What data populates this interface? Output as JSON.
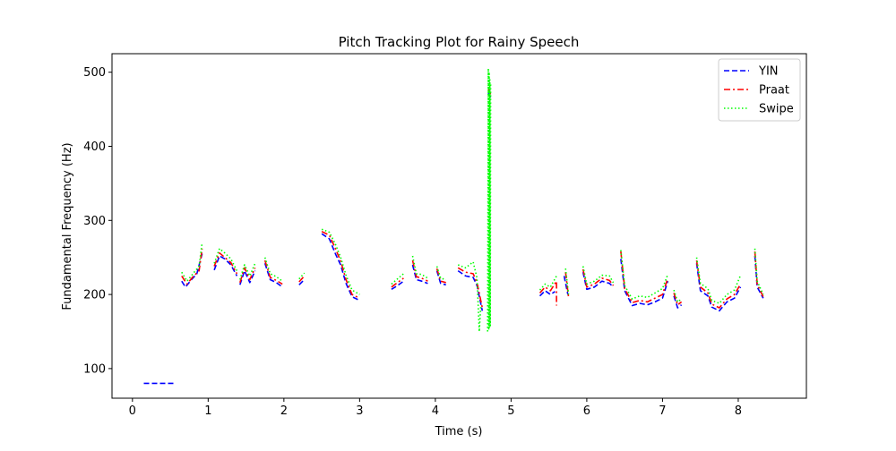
{
  "chart_data": {
    "type": "line",
    "title": "Pitch Tracking Plot for Rainy Speech",
    "xlabel": "Time (s)",
    "ylabel": "Fundamental Frequency (Hz)",
    "xlim": [
      -0.27,
      8.9
    ],
    "ylim": [
      60,
      525
    ],
    "xticks": [
      0,
      1,
      2,
      3,
      4,
      5,
      6,
      7,
      8
    ],
    "yticks": [
      100,
      200,
      300,
      400,
      500
    ],
    "grid": false,
    "legend_position": "top-right",
    "series": [
      {
        "name": "YIN",
        "color": "#0000ff",
        "dash": "dashed",
        "segments": [
          [
            [
              0.15,
              80
            ],
            [
              0.55,
              80
            ]
          ],
          [
            [
              0.65,
              218
            ],
            [
              0.7,
              210
            ],
            [
              0.78,
              220
            ],
            [
              0.85,
              228
            ],
            [
              0.92,
              255
            ]
          ],
          [
            [
              1.08,
              233
            ],
            [
              1.15,
              252
            ],
            [
              1.22,
              248
            ],
            [
              1.3,
              240
            ],
            [
              1.38,
              225
            ]
          ],
          [
            [
              1.42,
              213
            ],
            [
              1.48,
              232
            ],
            [
              1.55,
              216
            ],
            [
              1.62,
              232
            ]
          ],
          [
            [
              1.75,
              242
            ],
            [
              1.82,
              220
            ],
            [
              1.9,
              216
            ],
            [
              1.98,
              210
            ]
          ],
          [
            [
              2.2,
              213
            ],
            [
              2.27,
              220
            ]
          ],
          [
            [
              2.5,
              282
            ],
            [
              2.6,
              275
            ],
            [
              2.68,
              255
            ],
            [
              2.75,
              240
            ],
            [
              2.82,
              215
            ],
            [
              2.9,
              197
            ],
            [
              3.0,
              192
            ]
          ],
          [
            [
              3.42,
              207
            ],
            [
              3.5,
              212
            ],
            [
              3.58,
              218
            ]
          ],
          [
            [
              3.7,
              240
            ],
            [
              3.75,
              220
            ],
            [
              3.82,
              218
            ],
            [
              3.9,
              215
            ]
          ],
          [
            [
              4.02,
              232
            ],
            [
              4.07,
              215
            ],
            [
              4.14,
              213
            ]
          ],
          [
            [
              4.3,
              232
            ],
            [
              4.4,
              225
            ],
            [
              4.5,
              223
            ],
            [
              4.55,
              212
            ],
            [
              4.62,
              178
            ]
          ],
          [
            [
              4.7,
              472
            ],
            [
              4.73,
              466
            ]
          ],
          [
            [
              5.38,
              198
            ],
            [
              5.45,
              205
            ],
            [
              5.52,
              200
            ],
            [
              5.58,
              204
            ]
          ],
          [
            [
              5.7,
              225
            ],
            [
              5.75,
              200
            ]
          ],
          [
            [
              5.95,
              230
            ],
            [
              6.0,
              207
            ],
            [
              6.1,
              210
            ],
            [
              6.2,
              218
            ],
            [
              6.3,
              215
            ],
            [
              6.35,
              210
            ]
          ],
          [
            [
              6.45,
              248
            ],
            [
              6.5,
              205
            ],
            [
              6.6,
              185
            ],
            [
              6.7,
              188
            ],
            [
              6.8,
              186
            ],
            [
              6.9,
              190
            ],
            [
              7.0,
              195
            ],
            [
              7.07,
              218
            ]
          ],
          [
            [
              7.15,
              198
            ],
            [
              7.2,
              182
            ],
            [
              7.25,
              186
            ]
          ],
          [
            [
              7.45,
              242
            ],
            [
              7.5,
              205
            ],
            [
              7.6,
              198
            ],
            [
              7.65,
              183
            ],
            [
              7.75,
              178
            ],
            [
              7.85,
              190
            ],
            [
              7.95,
              195
            ],
            [
              8.03,
              210
            ]
          ],
          [
            [
              8.22,
              252
            ],
            [
              8.25,
              210
            ],
            [
              8.33,
              195
            ]
          ]
        ]
      },
      {
        "name": "Praat",
        "color": "#ff0000",
        "dash": "dashdot",
        "segments": [
          [
            [
              0.65,
              225
            ],
            [
              0.72,
              214
            ],
            [
              0.8,
              224
            ],
            [
              0.88,
              232
            ],
            [
              0.92,
              262
            ]
          ],
          [
            [
              1.08,
              238
            ],
            [
              1.15,
              256
            ],
            [
              1.22,
              250
            ],
            [
              1.3,
              243
            ],
            [
              1.38,
              228
            ]
          ],
          [
            [
              1.42,
              216
            ],
            [
              1.48,
              236
            ],
            [
              1.55,
              220
            ],
            [
              1.62,
              236
            ]
          ],
          [
            [
              1.75,
              246
            ],
            [
              1.82,
              223
            ],
            [
              1.9,
              219
            ],
            [
              1.98,
              214
            ]
          ],
          [
            [
              2.2,
              217
            ],
            [
              2.27,
              225
            ]
          ],
          [
            [
              2.5,
              285
            ],
            [
              2.6,
              280
            ],
            [
              2.68,
              262
            ],
            [
              2.75,
              245
            ],
            [
              2.82,
              220
            ],
            [
              2.9,
              200
            ],
            [
              3.0,
              195
            ]
          ],
          [
            [
              3.42,
              210
            ],
            [
              3.5,
              216
            ],
            [
              3.58,
              222
            ]
          ],
          [
            [
              3.7,
              246
            ],
            [
              3.75,
              224
            ],
            [
              3.82,
              222
            ],
            [
              3.9,
              218
            ]
          ],
          [
            [
              4.02,
              235
            ],
            [
              4.07,
              218
            ],
            [
              4.14,
              216
            ]
          ],
          [
            [
              4.3,
              236
            ],
            [
              4.4,
              230
            ],
            [
              4.5,
              228
            ],
            [
              4.55,
              216
            ],
            [
              4.62,
              182
            ]
          ],
          [
            [
              4.7,
              478
            ],
            [
              4.73,
              470
            ]
          ],
          [
            [
              5.38,
              202
            ],
            [
              5.45,
              210
            ],
            [
              5.52,
              205
            ],
            [
              5.6,
              218
            ],
            [
              5.6,
              185
            ]
          ],
          [
            [
              5.72,
              230
            ],
            [
              5.76,
              196
            ]
          ],
          [
            [
              5.95,
              234
            ],
            [
              6.0,
              210
            ],
            [
              6.1,
              214
            ],
            [
              6.2,
              222
            ],
            [
              6.3,
              219
            ],
            [
              6.35,
              212
            ]
          ],
          [
            [
              6.45,
              258
            ],
            [
              6.5,
              208
            ],
            [
              6.6,
              189
            ],
            [
              6.7,
              192
            ],
            [
              6.8,
              190
            ],
            [
              6.9,
              195
            ],
            [
              7.0,
              200
            ],
            [
              7.07,
              222
            ]
          ],
          [
            [
              7.15,
              202
            ],
            [
              7.2,
              186
            ],
            [
              7.25,
              190
            ]
          ],
          [
            [
              7.45,
              246
            ],
            [
              7.5,
              210
            ],
            [
              7.6,
              202
            ],
            [
              7.65,
              187
            ],
            [
              7.75,
              182
            ],
            [
              7.85,
              194
            ],
            [
              7.95,
              200
            ],
            [
              8.03,
              214
            ]
          ],
          [
            [
              8.22,
              258
            ],
            [
              8.25,
              214
            ],
            [
              8.33,
              197
            ]
          ]
        ]
      },
      {
        "name": "Swipe",
        "color": "#00ff00",
        "dash": "dotted",
        "segments": [
          [
            [
              0.65,
              230
            ],
            [
              0.72,
              218
            ],
            [
              0.8,
              228
            ],
            [
              0.88,
              238
            ],
            [
              0.92,
              270
            ]
          ],
          [
            [
              1.08,
              242
            ],
            [
              1.15,
              262
            ],
            [
              1.22,
              256
            ],
            [
              1.3,
              248
            ],
            [
              1.38,
              232
            ]
          ],
          [
            [
              1.42,
              220
            ],
            [
              1.48,
              240
            ],
            [
              1.55,
              225
            ],
            [
              1.62,
              242
            ]
          ],
          [
            [
              1.75,
              250
            ],
            [
              1.82,
              228
            ],
            [
              1.9,
              224
            ],
            [
              1.98,
              218
            ]
          ],
          [
            [
              2.2,
              221
            ],
            [
              2.27,
              229
            ]
          ],
          [
            [
              2.5,
              288
            ],
            [
              2.6,
              284
            ],
            [
              2.68,
              268
            ],
            [
              2.75,
              250
            ],
            [
              2.82,
              226
            ],
            [
              2.9,
              206
            ],
            [
              3.0,
              200
            ]
          ],
          [
            [
              3.42,
              214
            ],
            [
              3.5,
              221
            ],
            [
              3.58,
              228
            ]
          ],
          [
            [
              3.7,
              252
            ],
            [
              3.75,
              228
            ],
            [
              3.82,
              227
            ],
            [
              3.9,
              222
            ]
          ],
          [
            [
              4.02,
              238
            ],
            [
              4.07,
              222
            ],
            [
              4.14,
              220
            ]
          ],
          [
            [
              4.3,
              240
            ],
            [
              4.4,
              236
            ],
            [
              4.5,
              244
            ],
            [
              4.55,
              222
            ],
            [
              4.58,
              150
            ],
            [
              4.6,
              185
            ]
          ],
          [
            [
              4.69,
              150
            ],
            [
              4.7,
              505
            ],
            [
              4.705,
              152
            ],
            [
              4.71,
              500
            ],
            [
              4.715,
              155
            ],
            [
              4.72,
              490
            ],
            [
              4.725,
              158
            ],
            [
              4.73,
              485
            ]
          ],
          [
            [
              5.38,
              206
            ],
            [
              5.45,
              214
            ],
            [
              5.52,
              210
            ],
            [
              5.6,
              225
            ]
          ],
          [
            [
              5.72,
              235
            ],
            [
              5.76,
              200
            ]
          ],
          [
            [
              5.95,
              238
            ],
            [
              6.0,
              214
            ],
            [
              6.1,
              218
            ],
            [
              6.2,
              226
            ],
            [
              6.3,
              225
            ],
            [
              6.35,
              216
            ]
          ],
          [
            [
              6.45,
              260
            ],
            [
              6.5,
              212
            ],
            [
              6.6,
              194
            ],
            [
              6.7,
              198
            ],
            [
              6.8,
              196
            ],
            [
              6.9,
              202
            ],
            [
              7.0,
              208
            ],
            [
              7.07,
              227
            ]
          ],
          [
            [
              7.15,
              206
            ],
            [
              7.2,
              190
            ],
            [
              7.25,
              194
            ]
          ],
          [
            [
              7.45,
              250
            ],
            [
              7.5,
              215
            ],
            [
              7.6,
              208
            ],
            [
              7.65,
              192
            ],
            [
              7.75,
              188
            ],
            [
              7.85,
              200
            ],
            [
              7.95,
              206
            ],
            [
              8.03,
              226
            ]
          ],
          [
            [
              8.22,
              262
            ],
            [
              8.25,
              218
            ],
            [
              8.33,
              200
            ]
          ]
        ]
      }
    ]
  }
}
